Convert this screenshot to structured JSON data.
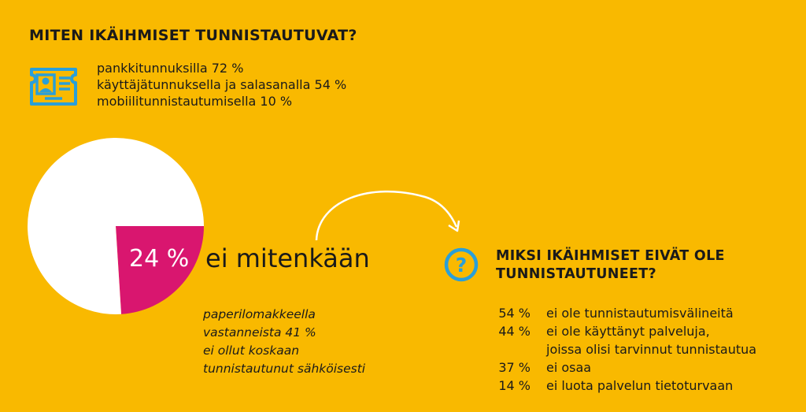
{
  "title": "MITEN IKÄIHMISET TUNNISTAUTUVAT?",
  "icons": {
    "id_card": "id-card-icon",
    "question": "question-circle-icon",
    "arrow": "curved-arrow-icon"
  },
  "colors": {
    "background": "#F9B900",
    "icon": "#2A9FD8",
    "pie_rest": "#FFFFFF",
    "pie_highlight": "#D9166F"
  },
  "methods": [
    "pankkitunnuksilla 72 %",
    "käyttäjätunnuksella ja salasanalla 54 %",
    "mobiilitunnistautumisella 10 %"
  ],
  "pie": {
    "percent_text": "24 %",
    "label": "ei mitenkään"
  },
  "paper_note": [
    "paperilomakkeella",
    "vastanneista 41 %",
    "ei ollut koskaan",
    "tunnistautunut sähköisesti"
  ],
  "subtitle": [
    "MIKSI IKÄIHMISET EIVÄT OLE",
    "TUNNISTAUTUNEET?"
  ],
  "reasons": [
    {
      "pct": "54 %",
      "text": [
        "ei ole tunnistautumisvälineitä"
      ]
    },
    {
      "pct": "44 %",
      "text": [
        "ei ole käyttänyt palveluja,",
        "joissa olisi tarvinnut tunnistautua"
      ]
    },
    {
      "pct": "37 %",
      "text": [
        "ei osaa"
      ]
    },
    {
      "pct": "14 %",
      "text": [
        "ei luota palvelun tietoturvaan"
      ]
    }
  ],
  "chart_data": {
    "type": "pie",
    "title": "",
    "slices": [
      {
        "label": "ei mitenkään",
        "value": 24
      },
      {
        "label": "",
        "value": 76
      }
    ]
  }
}
